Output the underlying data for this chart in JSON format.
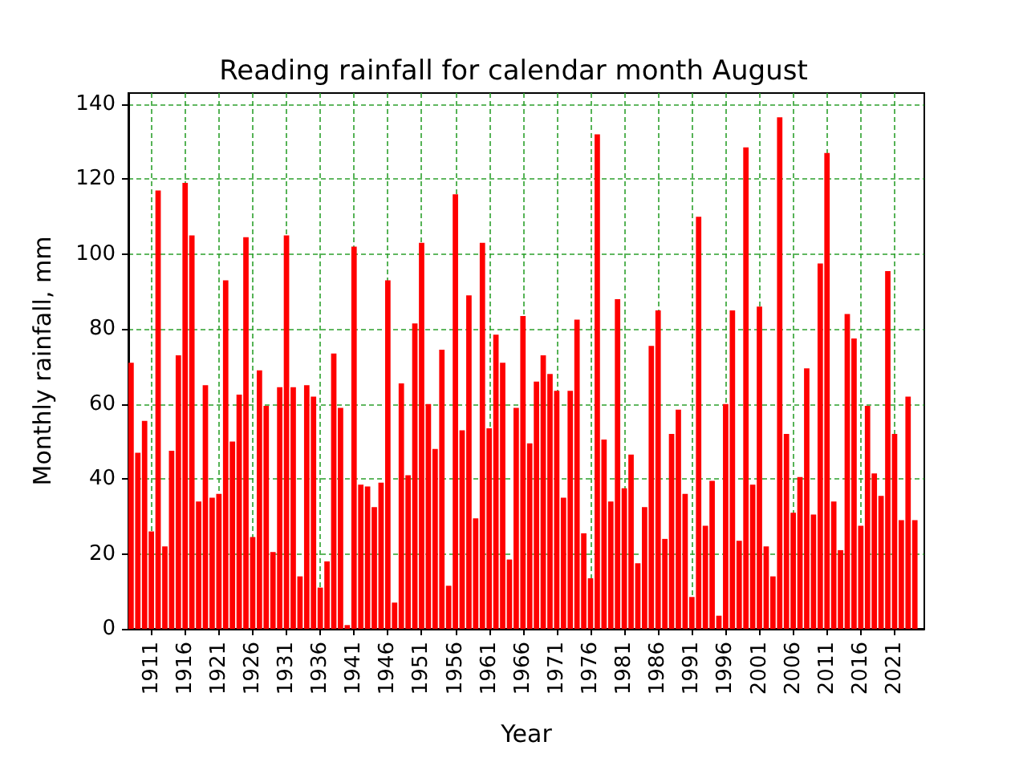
{
  "chart_data": {
    "type": "bar",
    "title": "Reading rainfall for calendar month August",
    "xlabel": "Year",
    "ylabel": "Monthly rainfall, mm",
    "color": "#ff0000",
    "x": [
      1908,
      1909,
      1910,
      1911,
      1912,
      1913,
      1914,
      1915,
      1916,
      1917,
      1918,
      1919,
      1920,
      1921,
      1922,
      1923,
      1924,
      1925,
      1926,
      1927,
      1928,
      1929,
      1930,
      1931,
      1932,
      1933,
      1934,
      1935,
      1936,
      1937,
      1938,
      1939,
      1940,
      1941,
      1942,
      1943,
      1944,
      1945,
      1946,
      1947,
      1948,
      1949,
      1950,
      1951,
      1952,
      1953,
      1954,
      1955,
      1956,
      1957,
      1958,
      1959,
      1960,
      1961,
      1962,
      1963,
      1964,
      1965,
      1966,
      1967,
      1968,
      1969,
      1970,
      1971,
      1972,
      1973,
      1974,
      1975,
      1976,
      1977,
      1978,
      1979,
      1980,
      1981,
      1982,
      1983,
      1984,
      1985,
      1986,
      1987,
      1988,
      1989,
      1990,
      1991,
      1992,
      1993,
      1994,
      1995,
      1996,
      1997,
      1998,
      1999,
      2000,
      2001,
      2002,
      2003,
      2004,
      2005,
      2006,
      2007,
      2008,
      2009,
      2010,
      2011,
      2012,
      2013,
      2014,
      2015,
      2016,
      2017,
      2018,
      2019,
      2020,
      2021,
      2022,
      2023,
      2024
    ],
    "values": [
      71,
      47,
      55.5,
      26,
      117,
      22,
      47.5,
      73,
      119,
      105,
      34,
      65,
      35,
      36,
      93,
      50,
      62.5,
      104.5,
      24.5,
      69,
      59.5,
      20.5,
      64.5,
      105,
      64.5,
      14,
      65,
      62,
      11,
      18,
      73.5,
      59,
      1,
      102,
      38.5,
      38,
      32.5,
      39,
      93,
      7,
      65.5,
      41,
      81.5,
      103,
      60,
      48,
      74.5,
      11.5,
      116,
      53,
      89,
      29.5,
      103,
      53.5,
      78.5,
      71,
      18.5,
      59,
      83.5,
      49.5,
      66,
      73,
      68,
      63.5,
      35,
      63.5,
      82.5,
      25.5,
      13.5,
      132,
      50.5,
      34,
      88,
      37.5,
      46.5,
      17.5,
      32.5,
      75.5,
      85,
      24,
      52,
      58.5,
      36,
      8.5,
      110,
      27.5,
      39.5,
      3.5,
      60,
      85,
      23.5,
      128.5,
      38.5,
      86,
      22,
      14,
      136.5,
      52,
      31,
      40.5,
      69.5,
      30.5,
      97.5,
      127,
      34,
      21,
      84,
      77.5,
      27.5,
      59.5,
      41.5,
      35.5,
      95.5,
      52,
      29,
      62,
      29
    ],
    "xlim": [
      1907.6,
      2025.4
    ],
    "xticks": [
      1911,
      1916,
      1921,
      1926,
      1931,
      1936,
      1941,
      1946,
      1951,
      1956,
      1961,
      1966,
      1971,
      1976,
      1981,
      1986,
      1991,
      1996,
      2001,
      2006,
      2011,
      2016,
      2021
    ],
    "ylim": [
      0,
      143
    ],
    "yticks": [
      0,
      20,
      40,
      60,
      80,
      100,
      120,
      140
    ],
    "grid": true
  }
}
